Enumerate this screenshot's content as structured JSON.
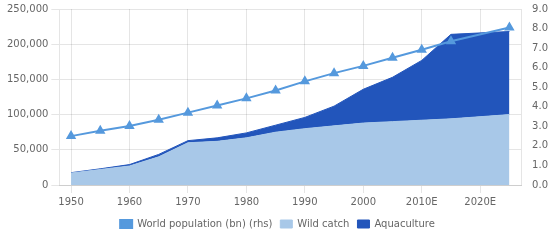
{
  "chart_data": {
    "type": "area",
    "stacked": true,
    "x": [
      1950,
      1955,
      1960,
      1965,
      1970,
      1975,
      1980,
      1985,
      1990,
      1995,
      2000,
      2005,
      2010,
      2015,
      2025
    ],
    "series": [
      {
        "name": "Wild catch",
        "color": "#a8c8e8",
        "values": [
          17000,
          22000,
          27000,
          40000,
          60000,
          62000,
          67000,
          75000,
          80000,
          84000,
          88000,
          90000,
          92000,
          94000,
          100000
        ]
      },
      {
        "name": "Aquaculture",
        "color": "#2255bb",
        "values": [
          500,
          1000,
          2000,
          3500,
          3000,
          5000,
          7000,
          10000,
          16000,
          28000,
          48000,
          63000,
          85000,
          120000,
          118000
        ]
      },
      {
        "name": "World population (bn) (rhs)",
        "color": "#5599dd",
        "type": "line",
        "marker": "triangle",
        "axis": "y2",
        "values": [
          2.5,
          2.77,
          3.02,
          3.34,
          3.7,
          4.07,
          4.43,
          4.83,
          5.3,
          5.72,
          6.09,
          6.51,
          6.92,
          7.35,
          8.05
        ]
      }
    ],
    "xlim": [
      1948,
      2027
    ],
    "xticks": [
      1950,
      1960,
      1970,
      1980,
      1990,
      2000,
      {
        "value": 2010,
        "label": "2010E"
      },
      {
        "value": 2020,
        "label": "2020E"
      }
    ],
    "ylim": [
      0,
      250000
    ],
    "yticks": [
      0,
      {
        "value": 50000,
        "label": "50,000"
      },
      {
        "value": 100000,
        "label": "100,000"
      },
      {
        "value": 150000,
        "label": "150,000"
      },
      {
        "value": 200000,
        "label": "200,000"
      },
      {
        "value": 250000,
        "label": "250,000"
      }
    ],
    "y2lim": [
      0,
      9.0
    ],
    "y2ticks": [
      {
        "value": 0,
        "label": "0.0"
      },
      {
        "value": 1,
        "label": "1.0"
      },
      {
        "value": 2,
        "label": "2.0"
      },
      {
        "value": 3,
        "label": "3.0"
      },
      {
        "value": 4,
        "label": "4.0"
      },
      {
        "value": 5,
        "label": "5.0"
      },
      {
        "value": 6,
        "label": "6.0"
      },
      {
        "value": 7,
        "label": "7.0"
      },
      {
        "value": 8,
        "label": "8.0"
      },
      {
        "value": 9,
        "label": "9.0"
      }
    ],
    "grid": true,
    "legend": "bottom"
  }
}
